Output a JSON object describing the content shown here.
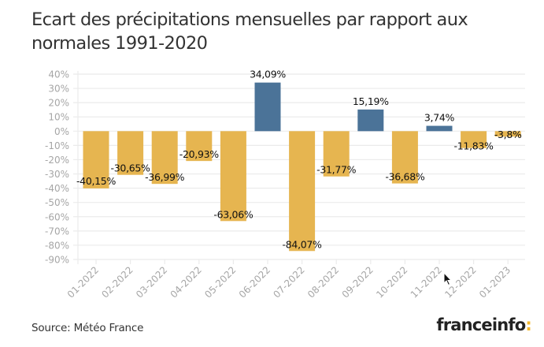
{
  "header": {
    "title": "Ecart des précipitations mensuelles par rapport aux normales 1991-2020"
  },
  "footer": {
    "source": "Source: Météo France",
    "logo_text": "franceinfo",
    "logo_colon": ":"
  },
  "colors": {
    "positive": "#4b7398",
    "negative": "#e6b550",
    "grid": "#ebebeb",
    "tick_label": "#a6a6a6",
    "data_label": "#111111",
    "logo_accent": "#f4b92d"
  },
  "chart_data": {
    "type": "bar",
    "title": "Ecart des précipitations mensuelles par rapport aux normales 1991-2020",
    "xlabel": "",
    "ylabel": "",
    "categories": [
      "01-2022",
      "02-2022",
      "03-2022",
      "04-2022",
      "05-2022",
      "06-2022",
      "07-2022",
      "08-2022",
      "09-2022",
      "10-2022",
      "11-2022",
      "12-2022",
      "01-2023"
    ],
    "values": [
      -40.15,
      -30.65,
      -36.99,
      -20.93,
      -63.06,
      34.09,
      -84.07,
      -31.77,
      15.19,
      -36.68,
      3.74,
      -11.83,
      -3.8
    ],
    "data_labels": [
      "-40,15%",
      "-30,65%",
      "-36,99%",
      "-20,93%",
      "-63,06%",
      "34,09%",
      "-84,07%",
      "-31,77%",
      "15,19%",
      "-36,68%",
      "3,74%",
      "-11,83%",
      "-3,8%"
    ],
    "ylim": [
      -90,
      40
    ],
    "yticks": [
      40,
      30,
      20,
      10,
      0,
      -10,
      -20,
      -30,
      -40,
      -50,
      -60,
      -70,
      -80,
      -90
    ],
    "ytick_labels": [
      "40%",
      "30%",
      "20%",
      "10%",
      "0%",
      "-10%",
      "-20%",
      "-30%",
      "-40%",
      "-50%",
      "-60%",
      "-70%",
      "-80%",
      "-90%"
    ],
    "grid": true,
    "legend": "none",
    "source": "Source: Météo France"
  }
}
